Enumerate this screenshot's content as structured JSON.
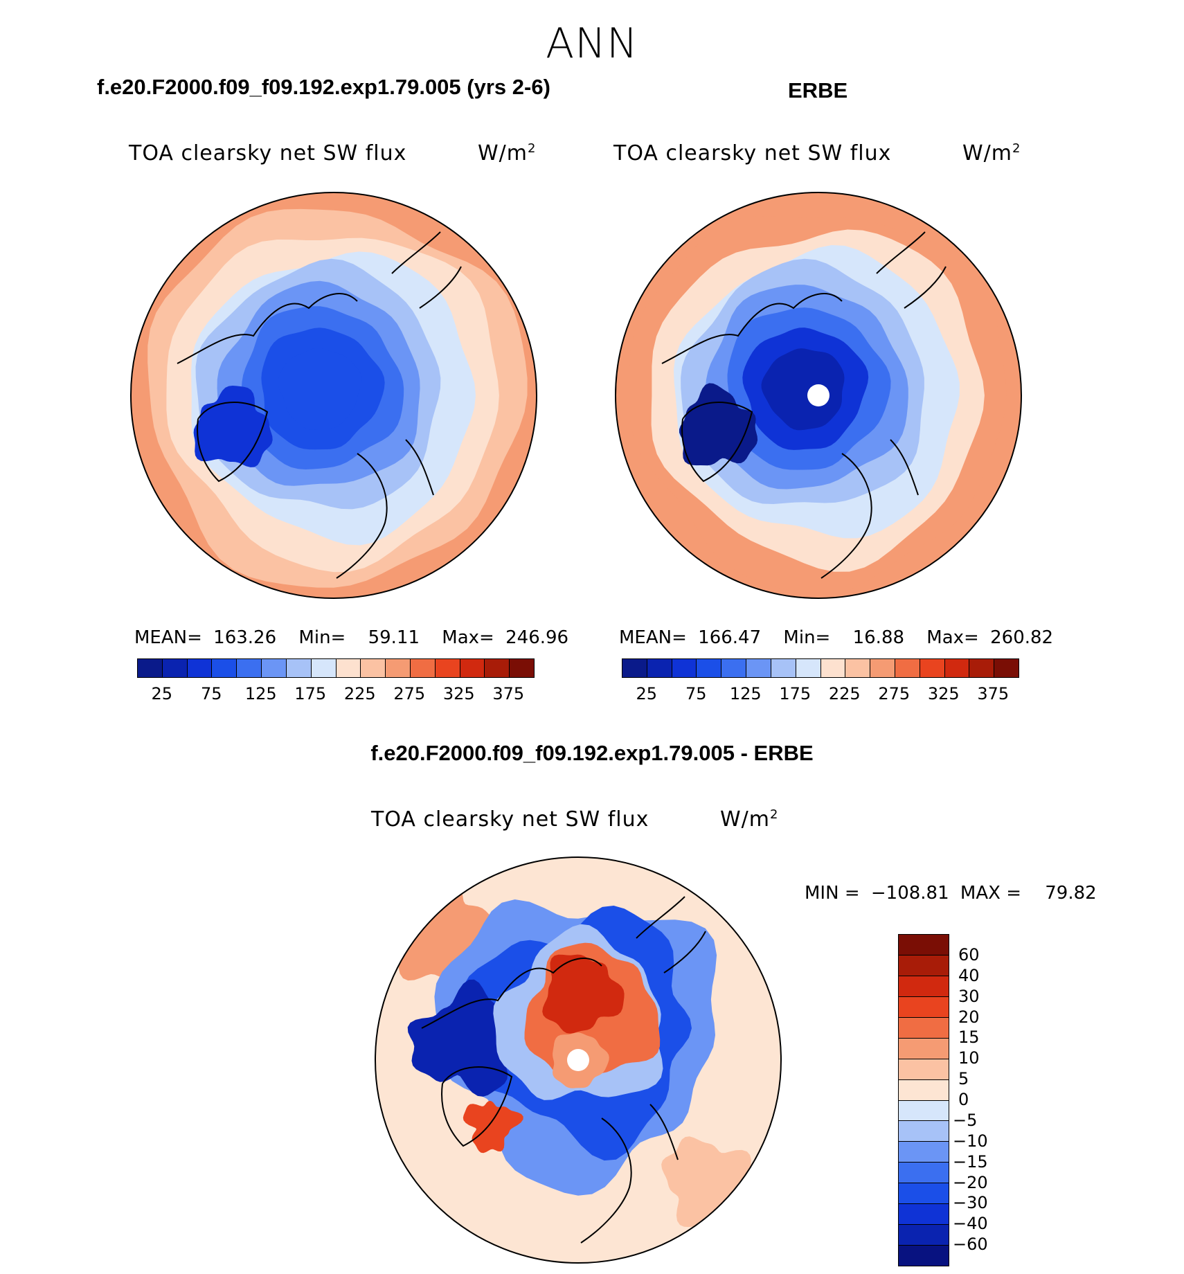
{
  "season": "ANN",
  "palette": {
    "abs": [
      "#0a1a8a",
      "#0a23b0",
      "#0f33d6",
      "#1b4fe8",
      "#3b6ff0",
      "#6b95f5",
      "#a7c2f7",
      "#d6e6fb",
      "#fde1cf",
      "#fbc2a3",
      "#f59b73",
      "#f06d43",
      "#e9441f",
      "#d1290f",
      "#a81c08",
      "#7a0e05"
    ],
    "diff": [
      "#081280",
      "#0a23b0",
      "#0f33d6",
      "#1b4fe8",
      "#3b6ff0",
      "#6b95f5",
      "#a7c2f7",
      "#d6e6fb",
      "#fde5d3",
      "#fbc2a3",
      "#f59b73",
      "#f06d43",
      "#e9441f",
      "#d1290f",
      "#a81c08",
      "#7a0e05"
    ]
  },
  "coast_color": "#000000",
  "chart_data": [
    {
      "type": "heatmap",
      "projection": "north-polar-stereographic",
      "title": "f.e20.F2000.f09_f09.192.exp1.79.005 (yrs 2-6)",
      "variable": "TOA clearsky net SW flux",
      "units_base": "W/m",
      "units_exp": "2",
      "mean_label": "MEAN=",
      "mean": "163.26",
      "min_label": "Min=",
      "min": "59.11",
      "max_label": "Max=",
      "max": "246.96",
      "levels": [
        25,
        50,
        75,
        100,
        125,
        150,
        175,
        200,
        225,
        250,
        275,
        300,
        325,
        350,
        375
      ],
      "tick_labels": [
        "25",
        "75",
        "125",
        "175",
        "225",
        "275",
        "325",
        "375"
      ],
      "field": {
        "pole": 60,
        "lat60": 150,
        "lat50": 210,
        "lat45": 245
      }
    },
    {
      "type": "heatmap",
      "projection": "north-polar-stereographic",
      "title": "ERBE",
      "variable": "TOA clearsky net SW flux",
      "units_base": "W/m",
      "units_exp": "2",
      "mean_label": "MEAN=",
      "mean": "166.47",
      "min_label": "Min=",
      "min": "16.88",
      "max_label": "Max=",
      "max": "260.82",
      "levels": [
        25,
        50,
        75,
        100,
        125,
        150,
        175,
        200,
        225,
        250,
        275,
        300,
        325,
        350,
        375
      ],
      "tick_labels": [
        "25",
        "75",
        "125",
        "175",
        "225",
        "275",
        "325",
        "375"
      ],
      "field": {
        "pole": 17,
        "lat60": 160,
        "lat50": 215,
        "lat45": 255
      }
    },
    {
      "type": "heatmap",
      "projection": "north-polar-stereographic",
      "title": "f.e20.F2000.f09_f09.192.exp1.79.005 - ERBE",
      "variable": "TOA clearsky net SW flux",
      "units_base": "W/m",
      "units_exp": "2",
      "min_label": "MIN =",
      "min": "−108.81",
      "max_label": "MAX =",
      "max": "79.82",
      "levels": [
        -60,
        -40,
        -30,
        -20,
        -15,
        -10,
        -5,
        0,
        5,
        10,
        15,
        20,
        30,
        40,
        60
      ],
      "tick_labels": [
        "60",
        "40",
        "30",
        "20",
        "15",
        "10",
        "5",
        "0",
        "−5",
        "−10",
        "−15",
        "−20",
        "−30",
        "−40",
        "−60"
      ]
    }
  ]
}
